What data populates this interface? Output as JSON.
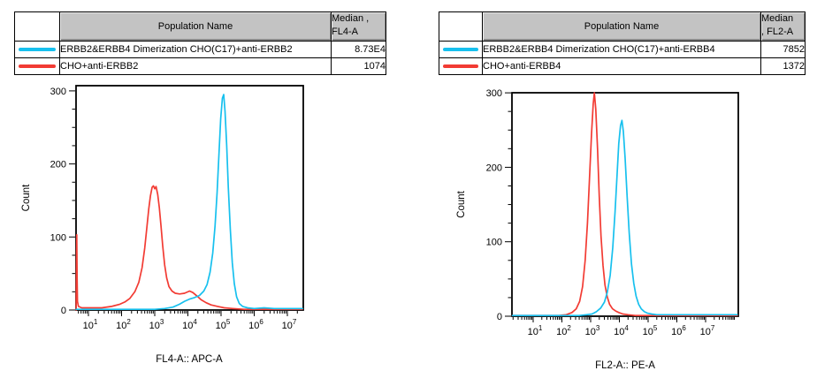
{
  "colors": {
    "cyan": "#17C0EE",
    "red": "#F23B33",
    "header_gray": "#c3c3c3",
    "axis_black": "#000000"
  },
  "panels": [
    {
      "id": "fl4",
      "table": {
        "corner_label": "",
        "population_header": "Population Name",
        "median_header_lines": [
          "Median ,",
          "FL4-A"
        ],
        "rows": [
          {
            "swatch": "cyan",
            "name": "ERBB2&ERBB4 Dimerization CHO(C17)+anti-ERBB2",
            "median": "8.73E4"
          },
          {
            "swatch": "red",
            "name": "CHO+anti-ERBB2",
            "median": "1074"
          }
        ]
      }
    },
    {
      "id": "fl2",
      "table": {
        "corner_label": "",
        "population_header": "Population Name",
        "median_header_lines": [
          "Median",
          ", FL2-A"
        ],
        "rows": [
          {
            "swatch": "cyan",
            "name": "ERBB2&ERBB4 Dimerization CHO(C17)+anti-ERBB4",
            "median": "7852"
          },
          {
            "swatch": "red",
            "name": "CHO+anti-ERBB4",
            "median": "1372"
          }
        ]
      }
    }
  ],
  "chart_data": [
    {
      "type": "line",
      "title": "",
      "xlabel": "FL4-A:: APC-A",
      "ylabel": "Count",
      "x_scale": "log10",
      "x_decade_labels": [
        "10^1",
        "10^2",
        "10^3",
        "10^4",
        "10^5",
        "10^6",
        "10^7"
      ],
      "x_decades": [
        1,
        2,
        3,
        4,
        5,
        6,
        7
      ],
      "xlim_log10": [
        0.627,
        7.48
      ],
      "ylim": [
        0,
        310
      ],
      "y_major_ticks": [
        0,
        100,
        200,
        300
      ],
      "y_minor_step": 25,
      "grid": false,
      "legend_position": "table-above",
      "series": [
        {
          "name": "ERBB2&ERBB4 Dimerization CHO(C17)+anti-ERBB2",
          "color_key": "cyan",
          "median": "8.73E4",
          "points_logx_count": [
            [
              0.63,
              1
            ],
            [
              1.5,
              1
            ],
            [
              2.5,
              1
            ],
            [
              3.0,
              1
            ],
            [
              3.3,
              2
            ],
            [
              3.55,
              4
            ],
            [
              3.75,
              8
            ],
            [
              3.9,
              12
            ],
            [
              4.05,
              15
            ],
            [
              4.2,
              17
            ],
            [
              4.35,
              20
            ],
            [
              4.48,
              26
            ],
            [
              4.58,
              35
            ],
            [
              4.67,
              52
            ],
            [
              4.75,
              78
            ],
            [
              4.82,
              115
            ],
            [
              4.88,
              160
            ],
            [
              4.94,
              215
            ],
            [
              4.99,
              262
            ],
            [
              5.04,
              290
            ],
            [
              5.08,
              295
            ],
            [
              5.12,
              272
            ],
            [
              5.17,
              225
            ],
            [
              5.22,
              168
            ],
            [
              5.28,
              110
            ],
            [
              5.34,
              65
            ],
            [
              5.4,
              36
            ],
            [
              5.47,
              18
            ],
            [
              5.55,
              9
            ],
            [
              5.65,
              5
            ],
            [
              5.8,
              3
            ],
            [
              6.0,
              2
            ],
            [
              6.3,
              3
            ],
            [
              6.6,
              2
            ],
            [
              7.0,
              2
            ],
            [
              7.46,
              2
            ]
          ]
        },
        {
          "name": "CHO+anti-ERBB2",
          "color_key": "red",
          "median": "1074",
          "points_logx_count": [
            [
              0.63,
              0
            ],
            [
              0.64,
              62
            ],
            [
              0.648,
              103
            ],
            [
              0.658,
              45
            ],
            [
              0.67,
              12
            ],
            [
              0.7,
              5
            ],
            [
              0.8,
              3
            ],
            [
              1.1,
              3
            ],
            [
              1.4,
              3
            ],
            [
              1.7,
              5
            ],
            [
              1.95,
              8
            ],
            [
              2.1,
              11
            ],
            [
              2.25,
              16
            ],
            [
              2.4,
              25
            ],
            [
              2.52,
              38
            ],
            [
              2.62,
              58
            ],
            [
              2.7,
              85
            ],
            [
              2.76,
              112
            ],
            [
              2.82,
              138
            ],
            [
              2.87,
              156
            ],
            [
              2.92,
              168
            ],
            [
              2.96,
              170
            ],
            [
              3.0,
              166
            ],
            [
              3.04,
              169
            ],
            [
              3.09,
              158
            ],
            [
              3.14,
              140
            ],
            [
              3.19,
              115
            ],
            [
              3.24,
              88
            ],
            [
              3.3,
              62
            ],
            [
              3.36,
              44
            ],
            [
              3.43,
              32
            ],
            [
              3.52,
              26
            ],
            [
              3.62,
              23
            ],
            [
              3.75,
              22
            ],
            [
              3.9,
              23
            ],
            [
              4.05,
              26
            ],
            [
              4.15,
              24
            ],
            [
              4.28,
              19
            ],
            [
              4.4,
              14
            ],
            [
              4.55,
              10
            ],
            [
              4.7,
              7
            ],
            [
              4.9,
              5
            ],
            [
              5.1,
              3
            ],
            [
              5.35,
              2
            ],
            [
              5.7,
              1
            ],
            [
              6.2,
              1
            ],
            [
              6.8,
              1
            ],
            [
              7.45,
              1
            ]
          ]
        }
      ]
    },
    {
      "type": "line",
      "title": "",
      "xlabel": "FL2-A:: PE-A",
      "ylabel": "Count",
      "x_scale": "log10",
      "x_decade_labels": [
        "10^1",
        "10^2",
        "10^3",
        "10^4",
        "10^5",
        "10^6",
        "10^7"
      ],
      "x_decades": [
        1,
        2,
        3,
        4,
        5,
        6,
        7
      ],
      "xlim_log10": [
        0.262,
        8.138
      ],
      "ylim": [
        0,
        303
      ],
      "y_major_ticks": [
        0,
        100,
        200,
        300
      ],
      "y_minor_step": 25,
      "grid": false,
      "legend_position": "table-above",
      "series": [
        {
          "name": "ERBB2&ERBB4 Dimerization CHO(C17)+anti-ERBB4",
          "color_key": "cyan",
          "median": "7852",
          "points_logx_count": [
            [
              0.28,
              1
            ],
            [
              1.5,
              1
            ],
            [
              2.6,
              1
            ],
            [
              2.85,
              2
            ],
            [
              3.05,
              3
            ],
            [
              3.2,
              6
            ],
            [
              3.35,
              11
            ],
            [
              3.48,
              19
            ],
            [
              3.58,
              32
            ],
            [
              3.68,
              55
            ],
            [
              3.77,
              92
            ],
            [
              3.85,
              140
            ],
            [
              3.92,
              190
            ],
            [
              3.98,
              232
            ],
            [
              4.04,
              256
            ],
            [
              4.09,
              263
            ],
            [
              4.14,
              248
            ],
            [
              4.2,
              212
            ],
            [
              4.27,
              160
            ],
            [
              4.34,
              112
            ],
            [
              4.42,
              70
            ],
            [
              4.5,
              44
            ],
            [
              4.58,
              27
            ],
            [
              4.67,
              16
            ],
            [
              4.76,
              10
            ],
            [
              4.87,
              6
            ],
            [
              4.98,
              4
            ],
            [
              5.12,
              3
            ],
            [
              5.3,
              2
            ],
            [
              5.6,
              2
            ],
            [
              6.2,
              2
            ],
            [
              7.0,
              2
            ],
            [
              8.1,
              2
            ]
          ]
        },
        {
          "name": "CHO+anti-ERBB4",
          "color_key": "red",
          "median": "1372",
          "points_logx_count": [
            [
              0.28,
              1
            ],
            [
              1.2,
              1
            ],
            [
              1.9,
              1
            ],
            [
              2.15,
              2
            ],
            [
              2.35,
              5
            ],
            [
              2.5,
              10
            ],
            [
              2.62,
              20
            ],
            [
              2.72,
              40
            ],
            [
              2.81,
              75
            ],
            [
              2.89,
              125
            ],
            [
              2.96,
              185
            ],
            [
              3.03,
              245
            ],
            [
              3.09,
              285
            ],
            [
              3.13,
              300
            ],
            [
              3.18,
              278
            ],
            [
              3.24,
              225
            ],
            [
              3.3,
              162
            ],
            [
              3.36,
              108
            ],
            [
              3.43,
              68
            ],
            [
              3.5,
              42
            ],
            [
              3.58,
              26
            ],
            [
              3.66,
              16
            ],
            [
              3.76,
              10
            ],
            [
              3.87,
              7
            ],
            [
              3.98,
              5
            ],
            [
              4.12,
              3
            ],
            [
              4.3,
              2
            ],
            [
              4.55,
              1
            ],
            [
              5.0,
              1
            ],
            [
              6.0,
              1
            ],
            [
              7.0,
              1
            ],
            [
              8.1,
              1
            ]
          ]
        }
      ]
    }
  ]
}
